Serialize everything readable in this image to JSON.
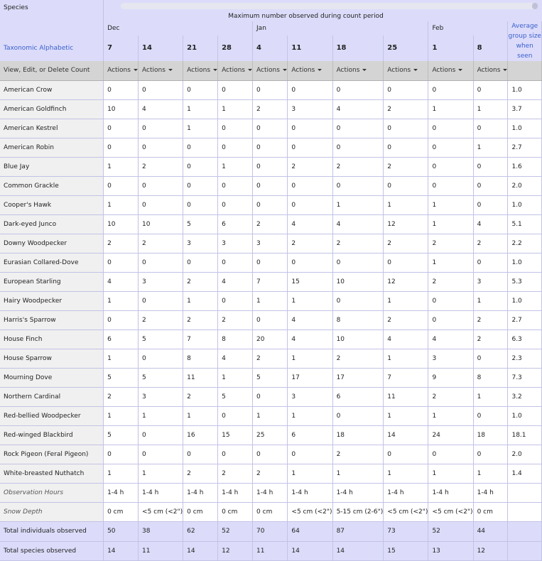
{
  "header": {
    "species_label": "Species",
    "max_observed_label": "Maximum number observed during count period",
    "taxonomic_link": "Taxonomic",
    "alphabetic_link": "Alphabetic",
    "avg_line1": "Average",
    "avg_line2": "group size",
    "avg_line3": "when seen",
    "months": [
      "Dec",
      "",
      "",
      "",
      "Jan",
      "",
      "",
      "",
      "Feb",
      ""
    ],
    "days": [
      "7",
      "14",
      "21",
      "28",
      "4",
      "11",
      "18",
      "25",
      "1",
      "8"
    ]
  },
  "actions_row": {
    "label": "View, Edit, or Delete Count",
    "action_label": "Actions"
  },
  "species_rows": [
    {
      "name": "American Crow",
      "counts": [
        "0",
        "0",
        "0",
        "0",
        "0",
        "0",
        "0",
        "0",
        "0",
        "0"
      ],
      "avg": "1.0"
    },
    {
      "name": "American Goldfinch",
      "counts": [
        "10",
        "4",
        "1",
        "1",
        "2",
        "3",
        "4",
        "2",
        "1",
        "1"
      ],
      "avg": "3.7"
    },
    {
      "name": "American Kestrel",
      "counts": [
        "0",
        "0",
        "1",
        "0",
        "0",
        "0",
        "0",
        "0",
        "0",
        "0"
      ],
      "avg": "1.0"
    },
    {
      "name": "American Robin",
      "counts": [
        "0",
        "0",
        "0",
        "0",
        "0",
        "0",
        "0",
        "0",
        "0",
        "1"
      ],
      "avg": "2.7"
    },
    {
      "name": "Blue Jay",
      "counts": [
        "1",
        "2",
        "0",
        "1",
        "0",
        "2",
        "2",
        "2",
        "0",
        "0"
      ],
      "avg": "1.6"
    },
    {
      "name": "Common Grackle",
      "counts": [
        "0",
        "0",
        "0",
        "0",
        "0",
        "0",
        "0",
        "0",
        "0",
        "0"
      ],
      "avg": "2.0"
    },
    {
      "name": "Cooper's Hawk",
      "counts": [
        "1",
        "0",
        "0",
        "0",
        "0",
        "0",
        "1",
        "1",
        "1",
        "0"
      ],
      "avg": "1.0"
    },
    {
      "name": "Dark-eyed Junco",
      "counts": [
        "10",
        "10",
        "5",
        "6",
        "2",
        "4",
        "4",
        "12",
        "1",
        "4"
      ],
      "avg": "5.1"
    },
    {
      "name": "Downy Woodpecker",
      "counts": [
        "2",
        "2",
        "3",
        "3",
        "3",
        "2",
        "2",
        "2",
        "2",
        "2"
      ],
      "avg": "2.2"
    },
    {
      "name": "Eurasian Collared-Dove",
      "counts": [
        "0",
        "0",
        "0",
        "0",
        "0",
        "0",
        "0",
        "0",
        "1",
        "0"
      ],
      "avg": "1.0"
    },
    {
      "name": "European Starling",
      "counts": [
        "4",
        "3",
        "2",
        "4",
        "7",
        "15",
        "10",
        "12",
        "2",
        "3"
      ],
      "avg": "5.3"
    },
    {
      "name": "Hairy Woodpecker",
      "counts": [
        "1",
        "0",
        "1",
        "0",
        "1",
        "1",
        "0",
        "1",
        "0",
        "1"
      ],
      "avg": "1.0"
    },
    {
      "name": "Harris's Sparrow",
      "counts": [
        "0",
        "2",
        "2",
        "2",
        "0",
        "4",
        "8",
        "2",
        "0",
        "2"
      ],
      "avg": "2.7"
    },
    {
      "name": "House Finch",
      "counts": [
        "6",
        "5",
        "7",
        "8",
        "20",
        "4",
        "10",
        "4",
        "4",
        "2"
      ],
      "avg": "6.3"
    },
    {
      "name": "House Sparrow",
      "counts": [
        "1",
        "0",
        "8",
        "4",
        "2",
        "1",
        "2",
        "1",
        "3",
        "0"
      ],
      "avg": "2.3"
    },
    {
      "name": "Mourning Dove",
      "counts": [
        "5",
        "5",
        "11",
        "1",
        "5",
        "17",
        "17",
        "7",
        "9",
        "8"
      ],
      "avg": "7.3"
    },
    {
      "name": "Northern Cardinal",
      "counts": [
        "2",
        "3",
        "2",
        "5",
        "0",
        "3",
        "6",
        "11",
        "2",
        "1"
      ],
      "avg": "3.2"
    },
    {
      "name": "Red-bellied Woodpecker",
      "counts": [
        "1",
        "1",
        "1",
        "0",
        "1",
        "1",
        "0",
        "1",
        "1",
        "0"
      ],
      "avg": "1.0"
    },
    {
      "name": "Red-winged Blackbird",
      "counts": [
        "5",
        "0",
        "16",
        "15",
        "25",
        "6",
        "18",
        "14",
        "24",
        "18"
      ],
      "avg": "18.1"
    },
    {
      "name": "Rock Pigeon (Feral Pigeon)",
      "counts": [
        "0",
        "0",
        "0",
        "0",
        "0",
        "0",
        "2",
        "0",
        "0",
        "0"
      ],
      "avg": "2.0"
    },
    {
      "name": "White-breasted Nuthatch",
      "counts": [
        "1",
        "1",
        "2",
        "2",
        "2",
        "1",
        "1",
        "1",
        "1",
        "1"
      ],
      "avg": "1.4"
    }
  ],
  "obs_hours": {
    "label": "Observation Hours",
    "values": [
      "1-4 h",
      "1-4 h",
      "1-4 h",
      "1-4 h",
      "1-4 h",
      "1-4 h",
      "1-4 h",
      "1-4 h",
      "1-4 h",
      "1-4 h"
    ]
  },
  "snow_depth": {
    "label": "Snow Depth",
    "values": [
      "0 cm",
      "<5 cm (<2\")",
      "0 cm",
      "0 cm",
      "0 cm",
      "<5 cm (<2\")",
      "5-15 cm (2-6\")",
      "<5 cm (<2\")",
      "<5 cm (<2\")",
      "0 cm"
    ]
  },
  "total_individuals": {
    "label": "Total individuals observed",
    "values": [
      "50",
      "38",
      "62",
      "52",
      "70",
      "64",
      "87",
      "73",
      "52",
      "44"
    ]
  },
  "total_species": {
    "label": "Total species observed",
    "values": [
      "14",
      "11",
      "14",
      "12",
      "11",
      "14",
      "14",
      "15",
      "13",
      "12"
    ]
  }
}
